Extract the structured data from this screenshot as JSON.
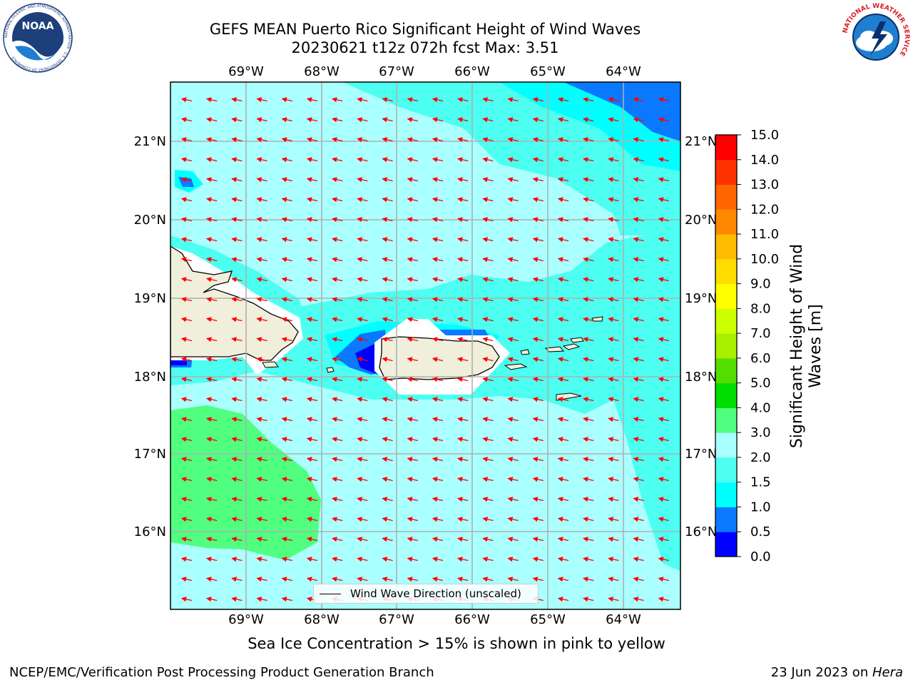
{
  "header": {
    "title_line1": "GEFS MEAN Puerto Rico Significant Height of Wind Waves",
    "title_line2": "20230621 t12z 072h fcst   Max: 3.51"
  },
  "map": {
    "lon_ticks": [
      "69°W",
      "68°W",
      "67°W",
      "66°W",
      "65°W",
      "64°W"
    ],
    "lat_ticks": [
      "21°N",
      "20°N",
      "19°N",
      "18°N",
      "17°N",
      "16°N"
    ],
    "legend_label": "Wind Wave Direction (unscaled)",
    "arrow_color": "#ff0000"
  },
  "colorbar": {
    "title_line1": "Significant Height of Wind",
    "title_line2": "Waves [m]",
    "tick_labels": [
      "0.0",
      "0.5",
      "1.0",
      "1.5",
      "2.0",
      "3.0",
      "4.0",
      "5.0",
      "6.0",
      "7.0",
      "8.0",
      "9.0",
      "10.0",
      "11.0",
      "12.0",
      "13.0",
      "14.0",
      "15.0"
    ],
    "colors": [
      "#0000ff",
      "#0a78ff",
      "#00ffff",
      "#4cfff0",
      "#aaffff",
      "#50ff80",
      "#00dd00",
      "#55dd00",
      "#aaee00",
      "#ccff00",
      "#ffff00",
      "#ffdd00",
      "#ffbb00",
      "#ff8800",
      "#ff6600",
      "#ff3300",
      "#ff0000"
    ]
  },
  "subtitle": "Sea Ice Concentration > 15% is shown in pink to yellow",
  "footer": {
    "left": "NCEP/EMC/Verification Post Processing Product Generation Branch",
    "right_date": "23 Jun 2023 on ",
    "right_machine": "Hera"
  },
  "logos": {
    "noaa_text": "NOAA",
    "noaa_ring": "NATIONAL OCEANIC AND ATMOSPHERIC ADMINISTRATION · U.S. DEPARTMENT OF COMMERCE",
    "nws_ring": "NATIONAL WEATHER SERVICE"
  }
}
